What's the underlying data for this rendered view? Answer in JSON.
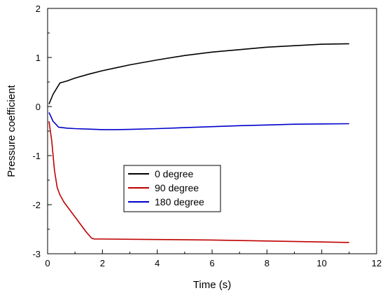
{
  "chart_data": {
    "type": "line",
    "xlabel": "Time (s)",
    "ylabel": "Pressure coefficient",
    "xlim": [
      0,
      12
    ],
    "ylim": [
      -3,
      2
    ],
    "xticks": [
      0,
      2,
      4,
      6,
      8,
      10,
      12
    ],
    "yticks": [
      -3,
      -2,
      -1,
      0,
      1,
      2
    ],
    "grid": false,
    "legend_position": "center-left",
    "series": [
      {
        "name": "0 degree",
        "color": "#000000",
        "x": [
          0.05,
          0.2,
          0.45,
          0.7,
          1.0,
          1.5,
          2.0,
          2.5,
          3.0,
          4.0,
          5.0,
          6.0,
          7.0,
          8.0,
          9.0,
          10.0,
          11.0
        ],
        "y": [
          0.05,
          0.25,
          0.48,
          0.52,
          0.58,
          0.66,
          0.73,
          0.79,
          0.85,
          0.95,
          1.04,
          1.11,
          1.16,
          1.21,
          1.24,
          1.27,
          1.28
        ]
      },
      {
        "name": "90 degree",
        "color": "#c00000",
        "x": [
          0.05,
          0.15,
          0.25,
          0.35,
          0.45,
          0.6,
          0.8,
          1.0,
          1.2,
          1.4,
          1.6,
          1.7,
          2.0,
          4.0,
          6.0,
          8.0,
          10.0,
          11.0
        ],
        "y": [
          -0.3,
          -0.7,
          -1.3,
          -1.65,
          -1.8,
          -1.95,
          -2.1,
          -2.25,
          -2.4,
          -2.55,
          -2.68,
          -2.7,
          -2.7,
          -2.71,
          -2.72,
          -2.74,
          -2.76,
          -2.77
        ]
      },
      {
        "name": "180 degree",
        "color": "#0000cc",
        "x": [
          0.05,
          0.2,
          0.4,
          0.7,
          1.0,
          1.5,
          2.0,
          2.5,
          3.0,
          4.0,
          5.0,
          6.0,
          7.0,
          8.0,
          9.0,
          10.0,
          11.0
        ],
        "y": [
          -0.12,
          -0.3,
          -0.42,
          -0.44,
          -0.45,
          -0.46,
          -0.47,
          -0.47,
          -0.465,
          -0.45,
          -0.43,
          -0.41,
          -0.39,
          -0.375,
          -0.36,
          -0.355,
          -0.35
        ]
      }
    ]
  }
}
